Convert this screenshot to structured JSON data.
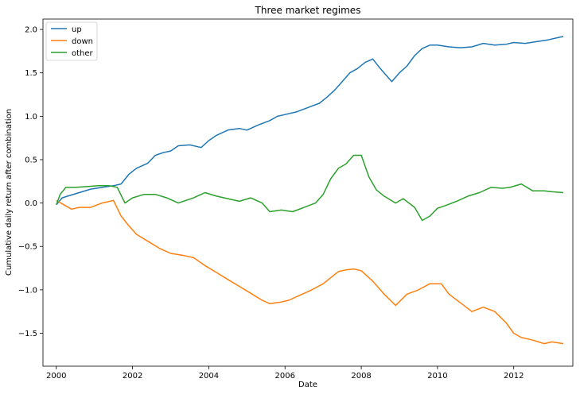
{
  "chart_data": {
    "type": "line",
    "title": "Three market regimes",
    "xlabel": "Date",
    "ylabel": "Cumulative daily return after combination",
    "xlim": [
      1999.65,
      2013.55
    ],
    "ylim": [
      -1.88,
      2.12
    ],
    "xticks": [
      2000,
      2002,
      2004,
      2006,
      2008,
      2010,
      2012
    ],
    "xtick_labels": [
      "2000",
      "2002",
      "2004",
      "2006",
      "2008",
      "2010",
      "2012"
    ],
    "yticks": [
      -1.5,
      -1.0,
      -0.5,
      0.0,
      0.5,
      1.0,
      1.5,
      2.0
    ],
    "ytick_labels": [
      "−1.5",
      "−1.0",
      "−0.5",
      "0.0",
      "0.5",
      "1.0",
      "1.5",
      "2.0"
    ],
    "legend_position": "top-left",
    "grid": false,
    "series": [
      {
        "name": "up",
        "color": "#1f77b4",
        "x": [
          2000.0,
          2000.15,
          2000.3,
          2000.6,
          2000.9,
          2001.2,
          2001.5,
          2001.7,
          2001.9,
          2002.1,
          2002.4,
          2002.6,
          2002.8,
          2003.0,
          2003.2,
          2003.5,
          2003.8,
          2004.0,
          2004.2,
          2004.5,
          2004.8,
          2005.0,
          2005.3,
          2005.6,
          2005.8,
          2006.0,
          2006.3,
          2006.6,
          2006.9,
          2007.1,
          2007.3,
          2007.5,
          2007.7,
          2007.9,
          2008.1,
          2008.3,
          2008.5,
          2008.7,
          2008.8,
          2009.0,
          2009.2,
          2009.4,
          2009.6,
          2009.8,
          2010.0,
          2010.3,
          2010.6,
          2010.9,
          2011.2,
          2011.5,
          2011.8,
          2012.0,
          2012.3,
          2012.6,
          2012.9,
          2013.1,
          2013.3
        ],
        "y": [
          -0.02,
          0.06,
          0.08,
          0.12,
          0.16,
          0.18,
          0.2,
          0.22,
          0.33,
          0.4,
          0.46,
          0.55,
          0.58,
          0.6,
          0.66,
          0.67,
          0.64,
          0.72,
          0.78,
          0.84,
          0.86,
          0.84,
          0.9,
          0.95,
          1.0,
          1.02,
          1.05,
          1.1,
          1.15,
          1.22,
          1.3,
          1.4,
          1.5,
          1.55,
          1.62,
          1.66,
          1.55,
          1.45,
          1.4,
          1.5,
          1.58,
          1.7,
          1.78,
          1.82,
          1.82,
          1.8,
          1.79,
          1.8,
          1.84,
          1.82,
          1.83,
          1.85,
          1.84,
          1.86,
          1.88,
          1.9,
          1.92
        ]
      },
      {
        "name": "down",
        "color": "#ff7f0e",
        "x": [
          2000.0,
          2000.2,
          2000.4,
          2000.6,
          2000.9,
          2001.2,
          2001.5,
          2001.7,
          2001.9,
          2002.1,
          2002.4,
          2002.7,
          2003.0,
          2003.3,
          2003.6,
          2003.9,
          2004.2,
          2004.5,
          2004.8,
          2005.1,
          2005.4,
          2005.6,
          2005.9,
          2006.1,
          2006.4,
          2006.7,
          2007.0,
          2007.2,
          2007.4,
          2007.6,
          2007.8,
          2008.0,
          2008.3,
          2008.6,
          2008.9,
          2009.2,
          2009.5,
          2009.8,
          2010.1,
          2010.3,
          2010.6,
          2010.9,
          2011.2,
          2011.5,
          2011.8,
          2012.0,
          2012.2,
          2012.5,
          2012.8,
          2013.0,
          2013.3
        ],
        "y": [
          0.03,
          -0.02,
          -0.07,
          -0.05,
          -0.05,
          0.0,
          0.03,
          -0.15,
          -0.26,
          -0.36,
          -0.44,
          -0.52,
          -0.58,
          -0.6,
          -0.63,
          -0.72,
          -0.8,
          -0.88,
          -0.96,
          -1.04,
          -1.12,
          -1.16,
          -1.14,
          -1.12,
          -1.06,
          -1.0,
          -0.93,
          -0.86,
          -0.79,
          -0.77,
          -0.76,
          -0.78,
          -0.9,
          -1.05,
          -1.18,
          -1.05,
          -1.0,
          -0.93,
          -0.93,
          -1.05,
          -1.15,
          -1.25,
          -1.2,
          -1.25,
          -1.38,
          -1.5,
          -1.55,
          -1.58,
          -1.62,
          -1.6,
          -1.62
        ]
      },
      {
        "name": "other",
        "color": "#2ca02c",
        "x": [
          2000.0,
          2000.1,
          2000.25,
          2000.5,
          2000.8,
          2001.1,
          2001.4,
          2001.6,
          2001.8,
          2002.0,
          2002.3,
          2002.6,
          2002.9,
          2003.2,
          2003.6,
          2003.9,
          2004.2,
          2004.5,
          2004.8,
          2005.1,
          2005.4,
          2005.6,
          2005.9,
          2006.2,
          2006.5,
          2006.8,
          2007.0,
          2007.2,
          2007.4,
          2007.6,
          2007.8,
          2008.0,
          2008.2,
          2008.4,
          2008.6,
          2008.9,
          2009.1,
          2009.4,
          2009.6,
          2009.8,
          2010.0,
          2010.2,
          2010.5,
          2010.8,
          2011.1,
          2011.4,
          2011.7,
          2011.9,
          2012.2,
          2012.5,
          2012.8,
          2013.0,
          2013.3
        ],
        "y": [
          -0.02,
          0.1,
          0.18,
          0.18,
          0.19,
          0.2,
          0.2,
          0.18,
          0.0,
          0.06,
          0.1,
          0.1,
          0.06,
          0.0,
          0.06,
          0.12,
          0.08,
          0.05,
          0.02,
          0.06,
          0.0,
          -0.1,
          -0.08,
          -0.1,
          -0.05,
          0.0,
          0.1,
          0.28,
          0.4,
          0.45,
          0.55,
          0.55,
          0.3,
          0.15,
          0.08,
          0.0,
          0.05,
          -0.05,
          -0.2,
          -0.15,
          -0.06,
          -0.03,
          0.02,
          0.08,
          0.12,
          0.18,
          0.17,
          0.18,
          0.22,
          0.14,
          0.14,
          0.13,
          0.12
        ]
      }
    ]
  }
}
